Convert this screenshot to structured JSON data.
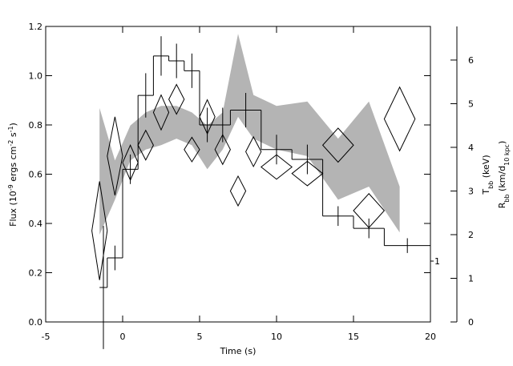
{
  "chart_data": {
    "type": "step",
    "xlabel": "Time (s)",
    "ylabel": [
      {
        "text": "Flux (10"
      },
      {
        "text": "-9",
        "sup": true
      },
      {
        "text": " ergs cm"
      },
      {
        "text": "-2",
        "sup": true
      },
      {
        "text": " s"
      },
      {
        "text": "-1",
        "sup": true
      },
      {
        "text": ")"
      }
    ],
    "y2label_T": [
      {
        "text": "T"
      },
      {
        "text": "bb",
        "sub": true
      },
      {
        "text": " (keV)"
      }
    ],
    "y2label_R": [
      {
        "text": "R"
      },
      {
        "text": "bb",
        "sub": true
      },
      {
        "text": " (km/d"
      },
      {
        "text": "10 kpc",
        "sub": true
      },
      {
        "text": ")"
      }
    ],
    "xlim": [
      -5,
      20
    ],
    "ylim": [
      0,
      1.2
    ],
    "y2lim": [
      0,
      6.77
    ],
    "xticks": [
      -5,
      0,
      5,
      10,
      15,
      20
    ],
    "yticks": [
      {
        "value": 0,
        "label": "0.0"
      },
      {
        "value": 0.2,
        "label": "0.2"
      },
      {
        "value": 0.4,
        "label": "0.4"
      },
      {
        "value": 0.6,
        "label": "0.6"
      },
      {
        "value": 0.8,
        "label": "0.8"
      },
      {
        "value": 1,
        "label": "1.0"
      },
      {
        "value": 1.2,
        "label": "1.2"
      }
    ],
    "y2ticks": [
      0,
      1,
      2,
      3,
      4,
      5,
      6
    ],
    "flux": {
      "color": "#000000",
      "bins": [
        -1.5,
        -1,
        0,
        1,
        2,
        3,
        4,
        5,
        6,
        7,
        9,
        11,
        13,
        15,
        17,
        20
      ],
      "values": [
        0.14,
        0.26,
        0.62,
        0.92,
        1.08,
        1.06,
        1.02,
        0.8,
        0.8,
        0.86,
        0.7,
        0.66,
        0.43,
        0.38,
        0.31
      ],
      "errors": [
        0.25,
        0.05,
        0.06,
        0.09,
        0.08,
        0.07,
        0.07,
        0.07,
        0.07,
        0.07,
        0.06,
        0.06,
        0.04,
        0.04,
        0.03
      ]
    },
    "temperature": {
      "axis": "y2",
      "color": "#b4b4b4",
      "x": [
        -1.5,
        -0.5,
        0.5,
        1.5,
        2.5,
        3.5,
        4.5,
        5.5,
        6.5,
        7.5,
        8.5,
        10,
        12,
        14,
        16,
        18
      ],
      "low": [
        2.0,
        2.8,
        3.7,
        3.95,
        4.05,
        4.2,
        4.05,
        3.5,
        3.95,
        4.7,
        4.2,
        3.95,
        3.8,
        2.8,
        3.1,
        2.05
      ],
      "high": [
        4.9,
        3.7,
        4.5,
        4.8,
        4.95,
        4.95,
        4.8,
        4.5,
        4.8,
        6.6,
        5.2,
        4.95,
        5.05,
        4.2,
        5.05,
        3.1
      ]
    },
    "radius": {
      "axis": "y2",
      "color": "#000000",
      "x": [
        -1.5,
        -0.5,
        0.5,
        1.5,
        2.5,
        3.5,
        4.5,
        5.5,
        6.5,
        7.5,
        8.5,
        10,
        12,
        14,
        16,
        18
      ],
      "xerr": [
        0.5,
        0.5,
        0.5,
        0.5,
        0.5,
        0.5,
        0.5,
        0.5,
        0.5,
        0.5,
        0.5,
        1,
        1,
        1,
        1,
        1
      ],
      "values": [
        2.09,
        3.8,
        3.65,
        4.05,
        4.8,
        5.1,
        3.95,
        4.7,
        3.95,
        3.0,
        3.9,
        3.55,
        3.4,
        4.05,
        2.55,
        4.65
      ],
      "errors": [
        1.13,
        0.9,
        0.4,
        0.34,
        0.4,
        0.34,
        0.28,
        0.39,
        0.34,
        0.34,
        0.34,
        0.28,
        0.28,
        0.39,
        0.39,
        0.73
      ]
    },
    "annotation": "1"
  }
}
